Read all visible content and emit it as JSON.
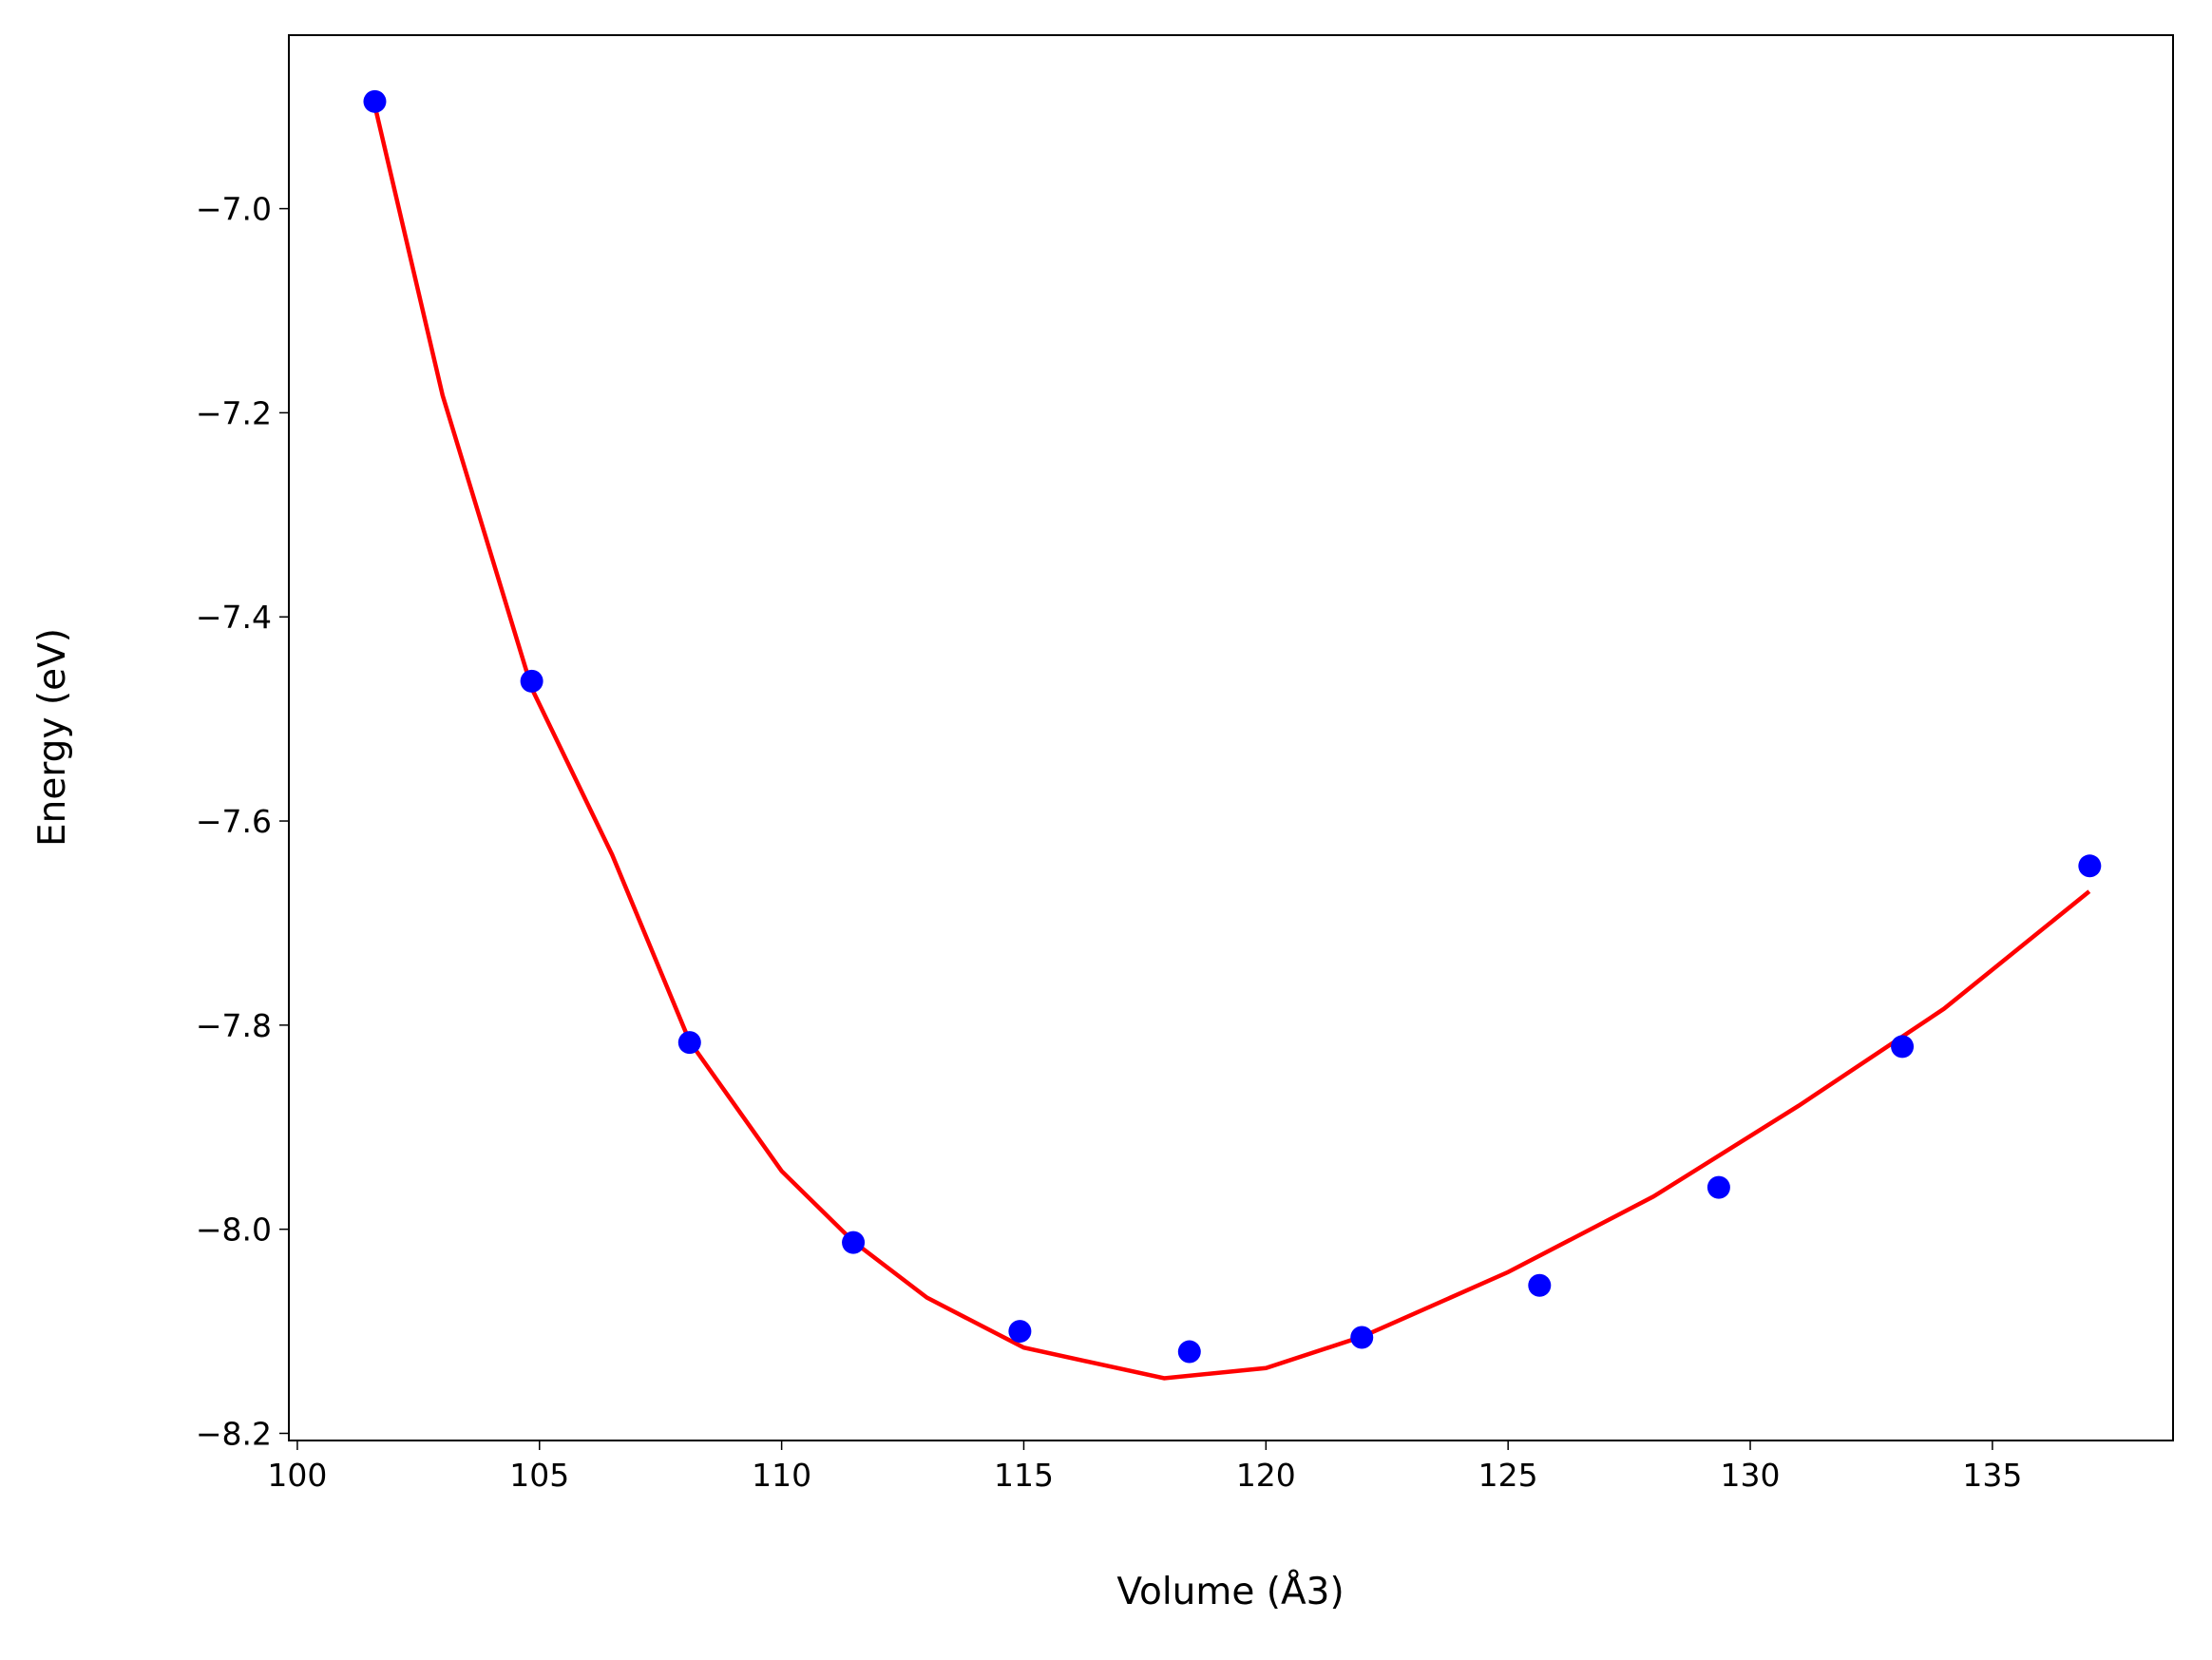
{
  "chart_data": {
    "type": "scatter",
    "xlabel": "Volume (Å3)",
    "ylabel": "Energy (eV)",
    "xlim": [
      99.825,
      138.73
    ],
    "ylim": [
      -8.207,
      -6.83
    ],
    "xticks": [
      100,
      105,
      110,
      115,
      120,
      125,
      130,
      135
    ],
    "yticks": [
      {
        "value": -7.0,
        "label": "−7.0"
      },
      {
        "value": -7.2,
        "label": "−7.2"
      },
      {
        "value": -7.4,
        "label": "−7.4"
      },
      {
        "value": -7.6,
        "label": "−7.6"
      },
      {
        "value": -7.8,
        "label": "−7.8"
      },
      {
        "value": -8.0,
        "label": "−8.0"
      },
      {
        "value": -8.2,
        "label": "−8.2"
      }
    ],
    "grid": false,
    "series": [
      {
        "type": "line",
        "color": "#ff0000",
        "x": [
          101.6,
          103,
          104.84,
          106.5,
          108.1,
          110,
          111.48,
          113,
          115,
          117.9,
          120,
          122,
          125,
          128,
          131,
          134,
          137
        ],
        "values": [
          -6.899,
          -7.183,
          -7.47,
          -7.633,
          -7.816,
          -7.943,
          -8.012,
          -8.067,
          -8.116,
          -8.146,
          -8.136,
          -8.105,
          -8.042,
          -7.968,
          -7.879,
          -7.784,
          -7.669
        ]
      },
      {
        "type": "scatter",
        "color": "#0000ff",
        "x": [
          101.6,
          104.84,
          108.1,
          111.48,
          114.92,
          118.42,
          121.98,
          125.65,
          129.35,
          133.14,
          137.01
        ],
        "values": [
          -6.895,
          -7.463,
          -7.817,
          -8.013,
          -8.1,
          -8.12,
          -8.106,
          -8.055,
          -7.959,
          -7.821,
          -7.644
        ]
      }
    ]
  }
}
